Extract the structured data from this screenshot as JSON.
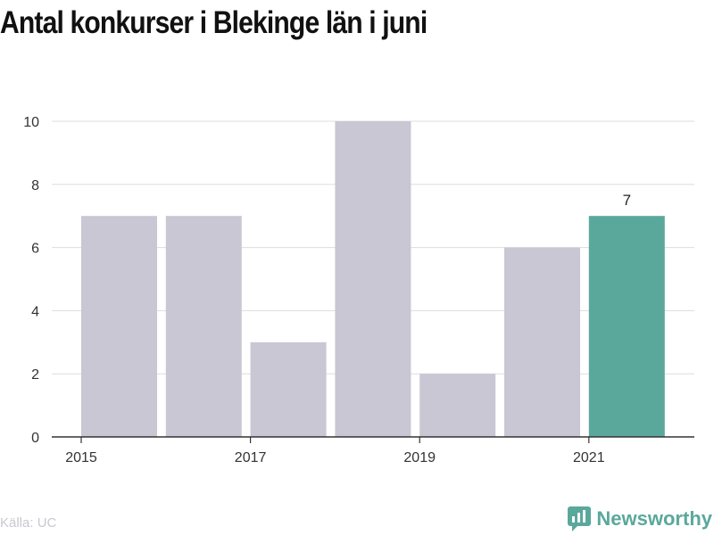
{
  "title": "Antal konkurser i Blekinge län i juni",
  "source": "Källa: UC",
  "brand": {
    "name": "Newsworthy",
    "icon": "newsworthy-logo-icon"
  },
  "colors": {
    "bar": "#c8c7d3",
    "highlight": "#5aa89b",
    "grid": "#dddddd",
    "axis": "#333333"
  },
  "chart_data": {
    "type": "bar",
    "title": "Antal konkurser i Blekinge län i juni",
    "xlabel": "",
    "ylabel": "",
    "categories": [
      "2015",
      "2016",
      "2017",
      "2018",
      "2019",
      "2020",
      "2021"
    ],
    "values": [
      7,
      7,
      3,
      10,
      2,
      6,
      7
    ],
    "x_tick_labels": [
      "2015",
      "2017",
      "2019",
      "2021"
    ],
    "y_ticks": [
      0,
      2,
      4,
      6,
      8,
      10
    ],
    "ylim": [
      0,
      10
    ],
    "highlight_index": 6,
    "data_labels": [
      {
        "index": 6,
        "text": "7"
      }
    ],
    "grid": true,
    "legend": "none"
  }
}
